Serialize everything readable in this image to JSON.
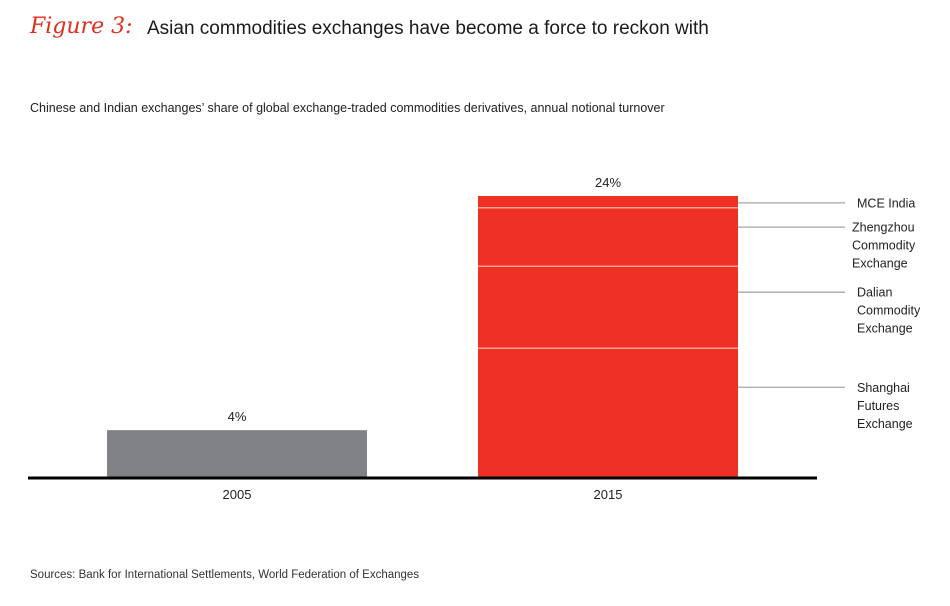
{
  "header": {
    "figure_label": "Figure 3:",
    "title": "Asian commodities exchanges have become a force to reckon with",
    "subtitle": "Chinese and Indian exchanges’ share of global exchange-traded commodities derivatives, annual notional turnover"
  },
  "footer": {
    "source": "Sources: Bank for International Settlements, World Federation of Exchanges"
  },
  "colors": {
    "gray_bar": "#818285",
    "red_bar": "#ee3124",
    "segment_line": "#f7a199",
    "leader": "#a6a6a6",
    "axis": "#000000"
  },
  "chart_data": {
    "type": "bar",
    "stacked": true,
    "title": "Asian commodities exchanges have become a force to reckon with",
    "subtitle": "Chinese and Indian exchanges’ share of global exchange-traded commodities derivatives, annual notional turnover",
    "xlabel": "",
    "ylabel": "",
    "ylim": [
      0,
      24
    ],
    "grid": false,
    "categories": [
      "2005",
      "2015"
    ],
    "totals": [
      4,
      24
    ],
    "total_labels": [
      "4%",
      "24%"
    ],
    "series": [
      {
        "name": "Total (2005)",
        "values": [
          4,
          0
        ],
        "color": "#818285"
      },
      {
        "name": "Shanghai Futures Exchange",
        "label_lines": [
          "Shanghai",
          "Futures",
          "Exchange"
        ],
        "values": [
          0,
          11
        ],
        "color": "#ee3124"
      },
      {
        "name": "Dalian Commodity Exchange",
        "label_lines": [
          "Dalian",
          "Commodity",
          "Exchange"
        ],
        "values": [
          0,
          7
        ],
        "color": "#ee3124"
      },
      {
        "name": "Zhengzhou Commodity Exchange",
        "label_lines": [
          "Zhengzhou",
          "Commodity",
          "Exchange"
        ],
        "values": [
          0,
          5
        ],
        "color": "#ee3124"
      },
      {
        "name": "MCE India",
        "label_lines": [
          "MCE India"
        ],
        "values": [
          0,
          1
        ],
        "color": "#ee3124"
      }
    ],
    "legend": "right (leader-line labels)"
  }
}
